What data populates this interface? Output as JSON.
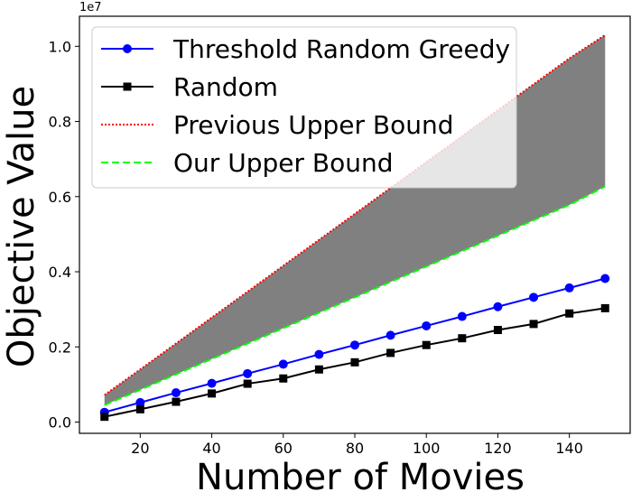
{
  "chart_data": {
    "type": "line",
    "xlabel": "Number of Movies",
    "ylabel": "Objective Value",
    "y_offset_label": "1e7",
    "xlim": [
      3,
      157
    ],
    "ylim": [
      -300000,
      10800000
    ],
    "x_ticks": [
      20,
      40,
      60,
      80,
      100,
      120,
      140
    ],
    "x_tick_labels": [
      "20",
      "40",
      "60",
      "80",
      "100",
      "120",
      "140"
    ],
    "y_ticks": [
      0,
      2000000,
      4000000,
      6000000,
      8000000,
      10000000
    ],
    "y_tick_labels": [
      "0.0",
      "0.2",
      "0.4",
      "0.6",
      "0.8",
      "1.0"
    ],
    "grid": false,
    "legend_position": "top-left",
    "x": [
      10,
      20,
      30,
      40,
      50,
      60,
      70,
      80,
      90,
      100,
      110,
      120,
      130,
      140,
      150
    ],
    "series": [
      {
        "name": "Threshold Random Greedy",
        "color": "#0000ff",
        "marker": "circle",
        "style": "solid",
        "values": [
          260000,
          520000,
          780000,
          1030000,
          1290000,
          1540000,
          1800000,
          2050000,
          2310000,
          2560000,
          2810000,
          3070000,
          3320000,
          3570000,
          3820000
        ]
      },
      {
        "name": "Random",
        "color": "#000000",
        "marker": "square",
        "style": "solid",
        "values": [
          140000,
          340000,
          540000,
          760000,
          1020000,
          1160000,
          1400000,
          1590000,
          1840000,
          2050000,
          2230000,
          2450000,
          2610000,
          2890000,
          3030000
        ]
      },
      {
        "name": "Previous Upper Bound",
        "color": "#ff0000",
        "marker": "none",
        "style": "dotted",
        "values": [
          720000,
          1400000,
          2090000,
          2780000,
          3470000,
          4160000,
          4850000,
          5540000,
          6230000,
          6920000,
          7610000,
          8300000,
          8990000,
          9680000,
          10300000
        ]
      },
      {
        "name": "Our Upper Bound",
        "color": "#00ff00",
        "marker": "none",
        "style": "dashed",
        "values": [
          450000,
          860000,
          1270000,
          1680000,
          2090000,
          2500000,
          2910000,
          3320000,
          3730000,
          4140000,
          4550000,
          4960000,
          5370000,
          5780000,
          6270000
        ]
      }
    ],
    "fill_between": {
      "upper": "Previous Upper Bound",
      "lower": "Our Upper Bound",
      "color": "#808080"
    }
  }
}
